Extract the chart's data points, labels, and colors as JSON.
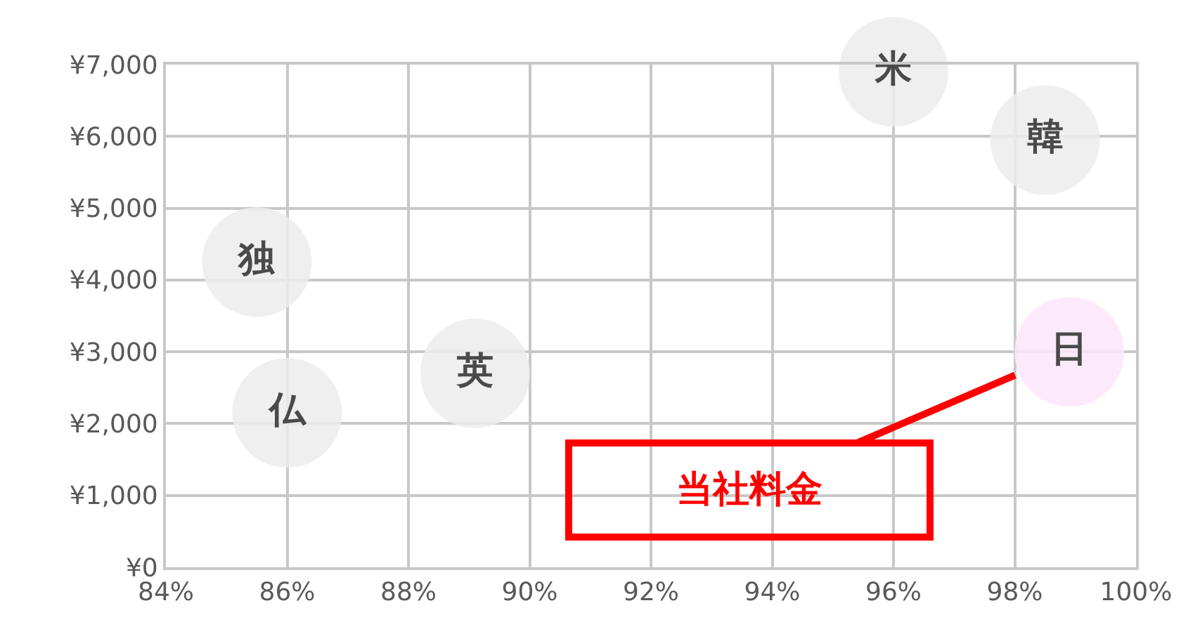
{
  "chart_data": {
    "type": "scatter",
    "marker": "circle",
    "legend": false,
    "grid": true,
    "xlim": [
      84,
      100
    ],
    "xticks": [
      {
        "value": 84,
        "label": "84%"
      },
      {
        "value": 86,
        "label": "86%"
      },
      {
        "value": 88,
        "label": "88%"
      },
      {
        "value": 90,
        "label": "90%"
      },
      {
        "value": 92,
        "label": "92%"
      },
      {
        "value": 94,
        "label": "94%"
      },
      {
        "value": 96,
        "label": "96%"
      },
      {
        "value": 98,
        "label": "98%"
      },
      {
        "value": 100,
        "label": "100%"
      }
    ],
    "ylim": [
      0,
      7000
    ],
    "yticks": [
      {
        "value": 0,
        "label": "¥0"
      },
      {
        "value": 1000,
        "label": "¥1,000"
      },
      {
        "value": 2000,
        "label": "¥2,000"
      },
      {
        "value": 3000,
        "label": "¥3,000"
      },
      {
        "value": 4000,
        "label": "¥4,000"
      },
      {
        "value": 5000,
        "label": "¥5,000"
      },
      {
        "value": 6000,
        "label": "¥6,000"
      },
      {
        "value": 7000,
        "label": "¥7,000"
      }
    ],
    "series": [
      {
        "name": "米",
        "color": "#ececec",
        "x": [
          96.0
        ],
        "values": [
          6900
        ]
      },
      {
        "name": "韓",
        "color": "#ececec",
        "x": [
          98.5
        ],
        "values": [
          5950
        ]
      },
      {
        "name": "独",
        "color": "#ececec",
        "x": [
          85.5
        ],
        "values": [
          4250
        ]
      },
      {
        "name": "英",
        "color": "#ececec",
        "x": [
          89.1
        ],
        "values": [
          2700
        ]
      },
      {
        "name": "仏",
        "color": "#ececec",
        "x": [
          86.0
        ],
        "values": [
          2150
        ]
      },
      {
        "name": "日",
        "color": "#fbe6fa",
        "x": [
          98.9
        ],
        "values": [
          3000
        ]
      }
    ],
    "annotations": [
      {
        "text": "当社料金",
        "x": 98.9,
        "y": 3000
      }
    ]
  }
}
